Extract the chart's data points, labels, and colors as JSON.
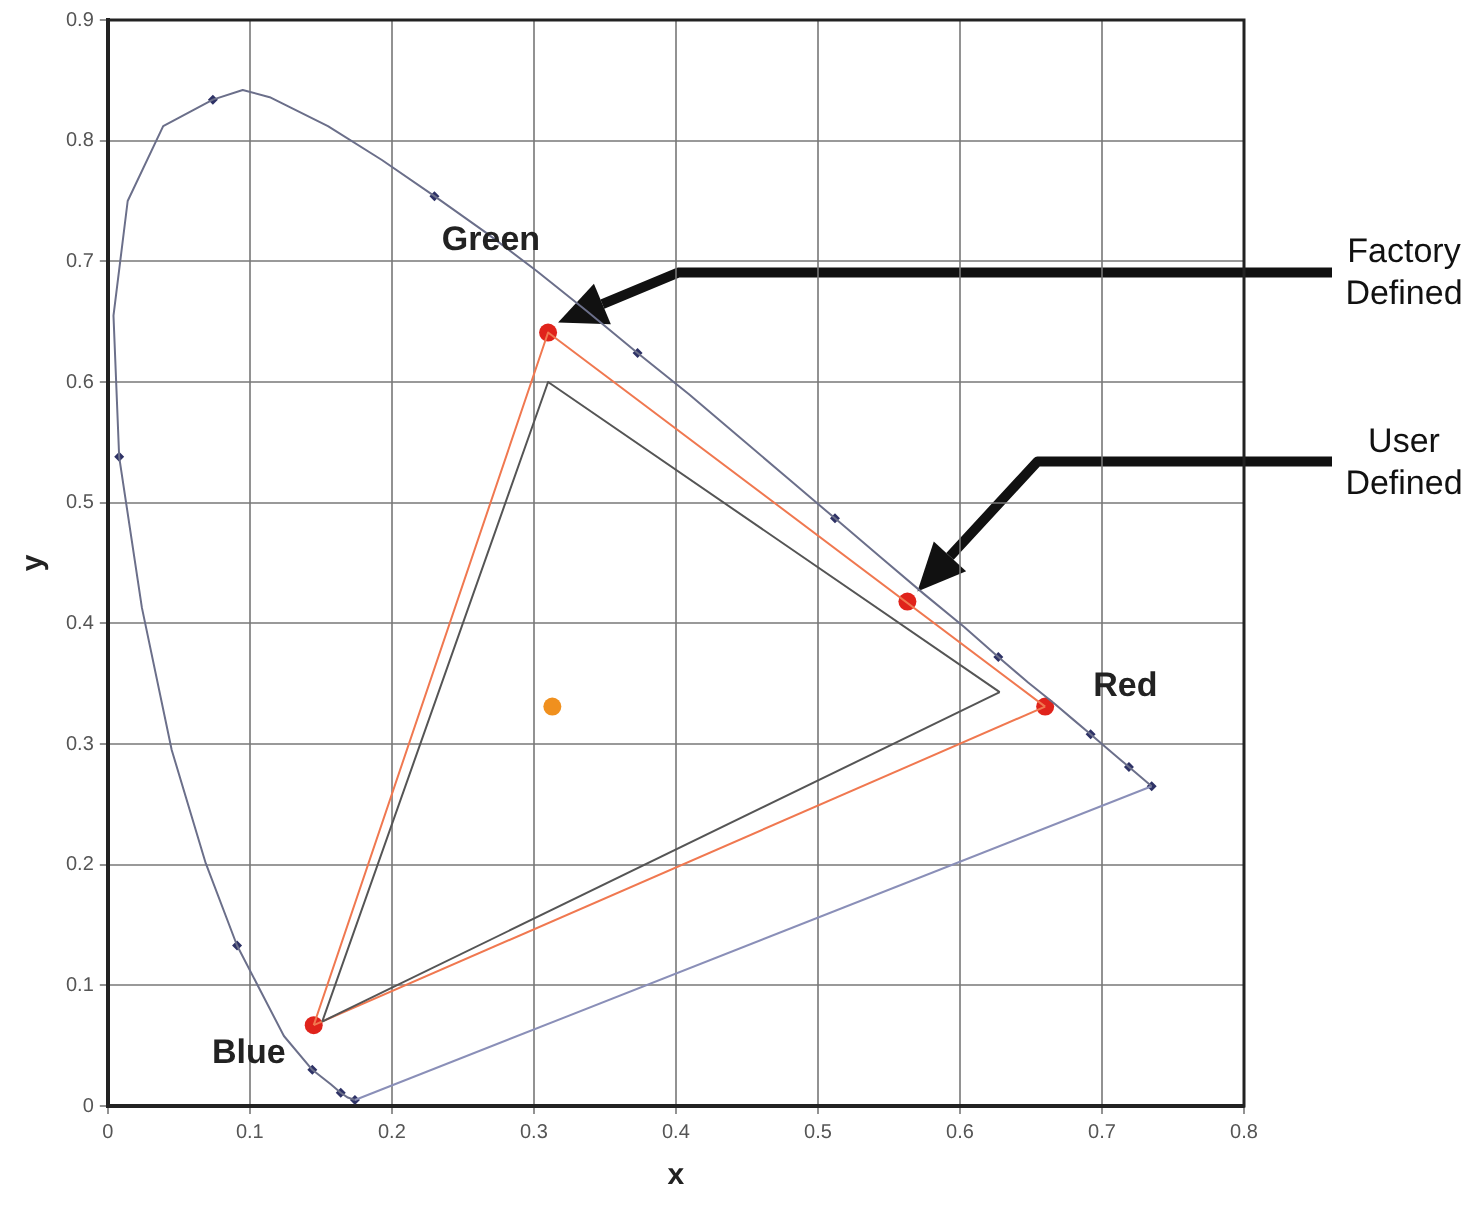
{
  "chart_data": {
    "type": "line",
    "xlabel": "x",
    "ylabel": "y",
    "xlim": [
      0,
      0.8
    ],
    "ylim": [
      0,
      0.9
    ],
    "xticks": [
      0,
      0.1,
      0.2,
      0.3,
      0.4,
      0.5,
      0.6,
      0.7,
      0.8
    ],
    "yticks": [
      0,
      0.1,
      0.2,
      0.3,
      0.4,
      0.5,
      0.6,
      0.7,
      0.8,
      0.9
    ],
    "grid": true,
    "legend": false,
    "series": [
      {
        "color": "#6b6f8a",
        "marker": "none",
        "x": [
          0.174,
          0.169,
          0.164,
          0.157,
          0.144,
          0.124,
          0.091,
          0.069,
          0.045,
          0.024,
          0.008,
          0.004,
          0.014,
          0.039,
          0.074,
          0.095,
          0.114,
          0.155,
          0.193,
          0.23,
          0.266,
          0.302,
          0.337,
          0.373,
          0.409,
          0.444,
          0.479,
          0.512,
          0.545,
          0.575,
          0.603,
          0.627,
          0.648,
          0.666,
          0.68,
          0.692,
          0.701,
          0.708,
          0.714,
          0.719,
          0.723,
          0.735
        ],
        "values": [
          0.005,
          0.007,
          0.011,
          0.018,
          0.03,
          0.058,
          0.133,
          0.201,
          0.295,
          0.413,
          0.538,
          0.655,
          0.75,
          0.812,
          0.834,
          0.842,
          0.836,
          0.812,
          0.784,
          0.754,
          0.724,
          0.692,
          0.659,
          0.624,
          0.59,
          0.555,
          0.52,
          0.487,
          0.454,
          0.424,
          0.397,
          0.372,
          0.351,
          0.334,
          0.32,
          0.308,
          0.299,
          0.292,
          0.286,
          0.281,
          0.277,
          0.265
        ]
      },
      {
        "color": "#8a8fb8",
        "marker": "none",
        "x": [
          0.174,
          0.735
        ],
        "values": [
          0.005,
          0.265
        ]
      },
      {
        "type": "scatter",
        "color": "#2e3266",
        "marker": "diamond",
        "x": [
          0.008,
          0.074,
          0.23,
          0.373,
          0.512,
          0.627,
          0.692,
          0.719,
          0.735,
          0.091,
          0.144,
          0.164,
          0.174
        ],
        "values": [
          0.538,
          0.834,
          0.754,
          0.624,
          0.487,
          0.372,
          0.308,
          0.281,
          0.265,
          0.133,
          0.03,
          0.011,
          0.005
        ]
      },
      {
        "color": "#555555",
        "marker": "none",
        "x": [
          0.151,
          0.31,
          0.628
        ],
        "values": [
          0.07,
          0.6,
          0.343
        ]
      },
      {
        "color": "#555555",
        "marker": "none",
        "x": [
          0.151,
          0.628
        ],
        "values": [
          0.07,
          0.343
        ]
      },
      {
        "color": "#f07850",
        "marker": "none",
        "x": [
          0.145,
          0.31,
          0.66
        ],
        "values": [
          0.067,
          0.641,
          0.331
        ]
      },
      {
        "color": "#f07850",
        "marker": "none",
        "x": [
          0.145,
          0.66
        ],
        "values": [
          0.067,
          0.331
        ]
      },
      {
        "type": "scatter",
        "color": "#e0231b",
        "marker": "circle",
        "x": [
          0.31,
          0.66,
          0.145,
          0.563
        ],
        "values": [
          0.641,
          0.331,
          0.067,
          0.418
        ]
      },
      {
        "type": "scatter",
        "color": "#f0901e",
        "marker": "circle",
        "x": [
          0.313
        ],
        "values": [
          0.331
        ]
      }
    ],
    "annotations": [
      {
        "text": "Green",
        "x": 0.31,
        "y": 0.641
      },
      {
        "text": "Red",
        "x": 0.66,
        "y": 0.331
      },
      {
        "text": "Blue",
        "x": 0.145,
        "y": 0.067
      },
      "Factory Defined",
      "User Defined"
    ]
  }
}
